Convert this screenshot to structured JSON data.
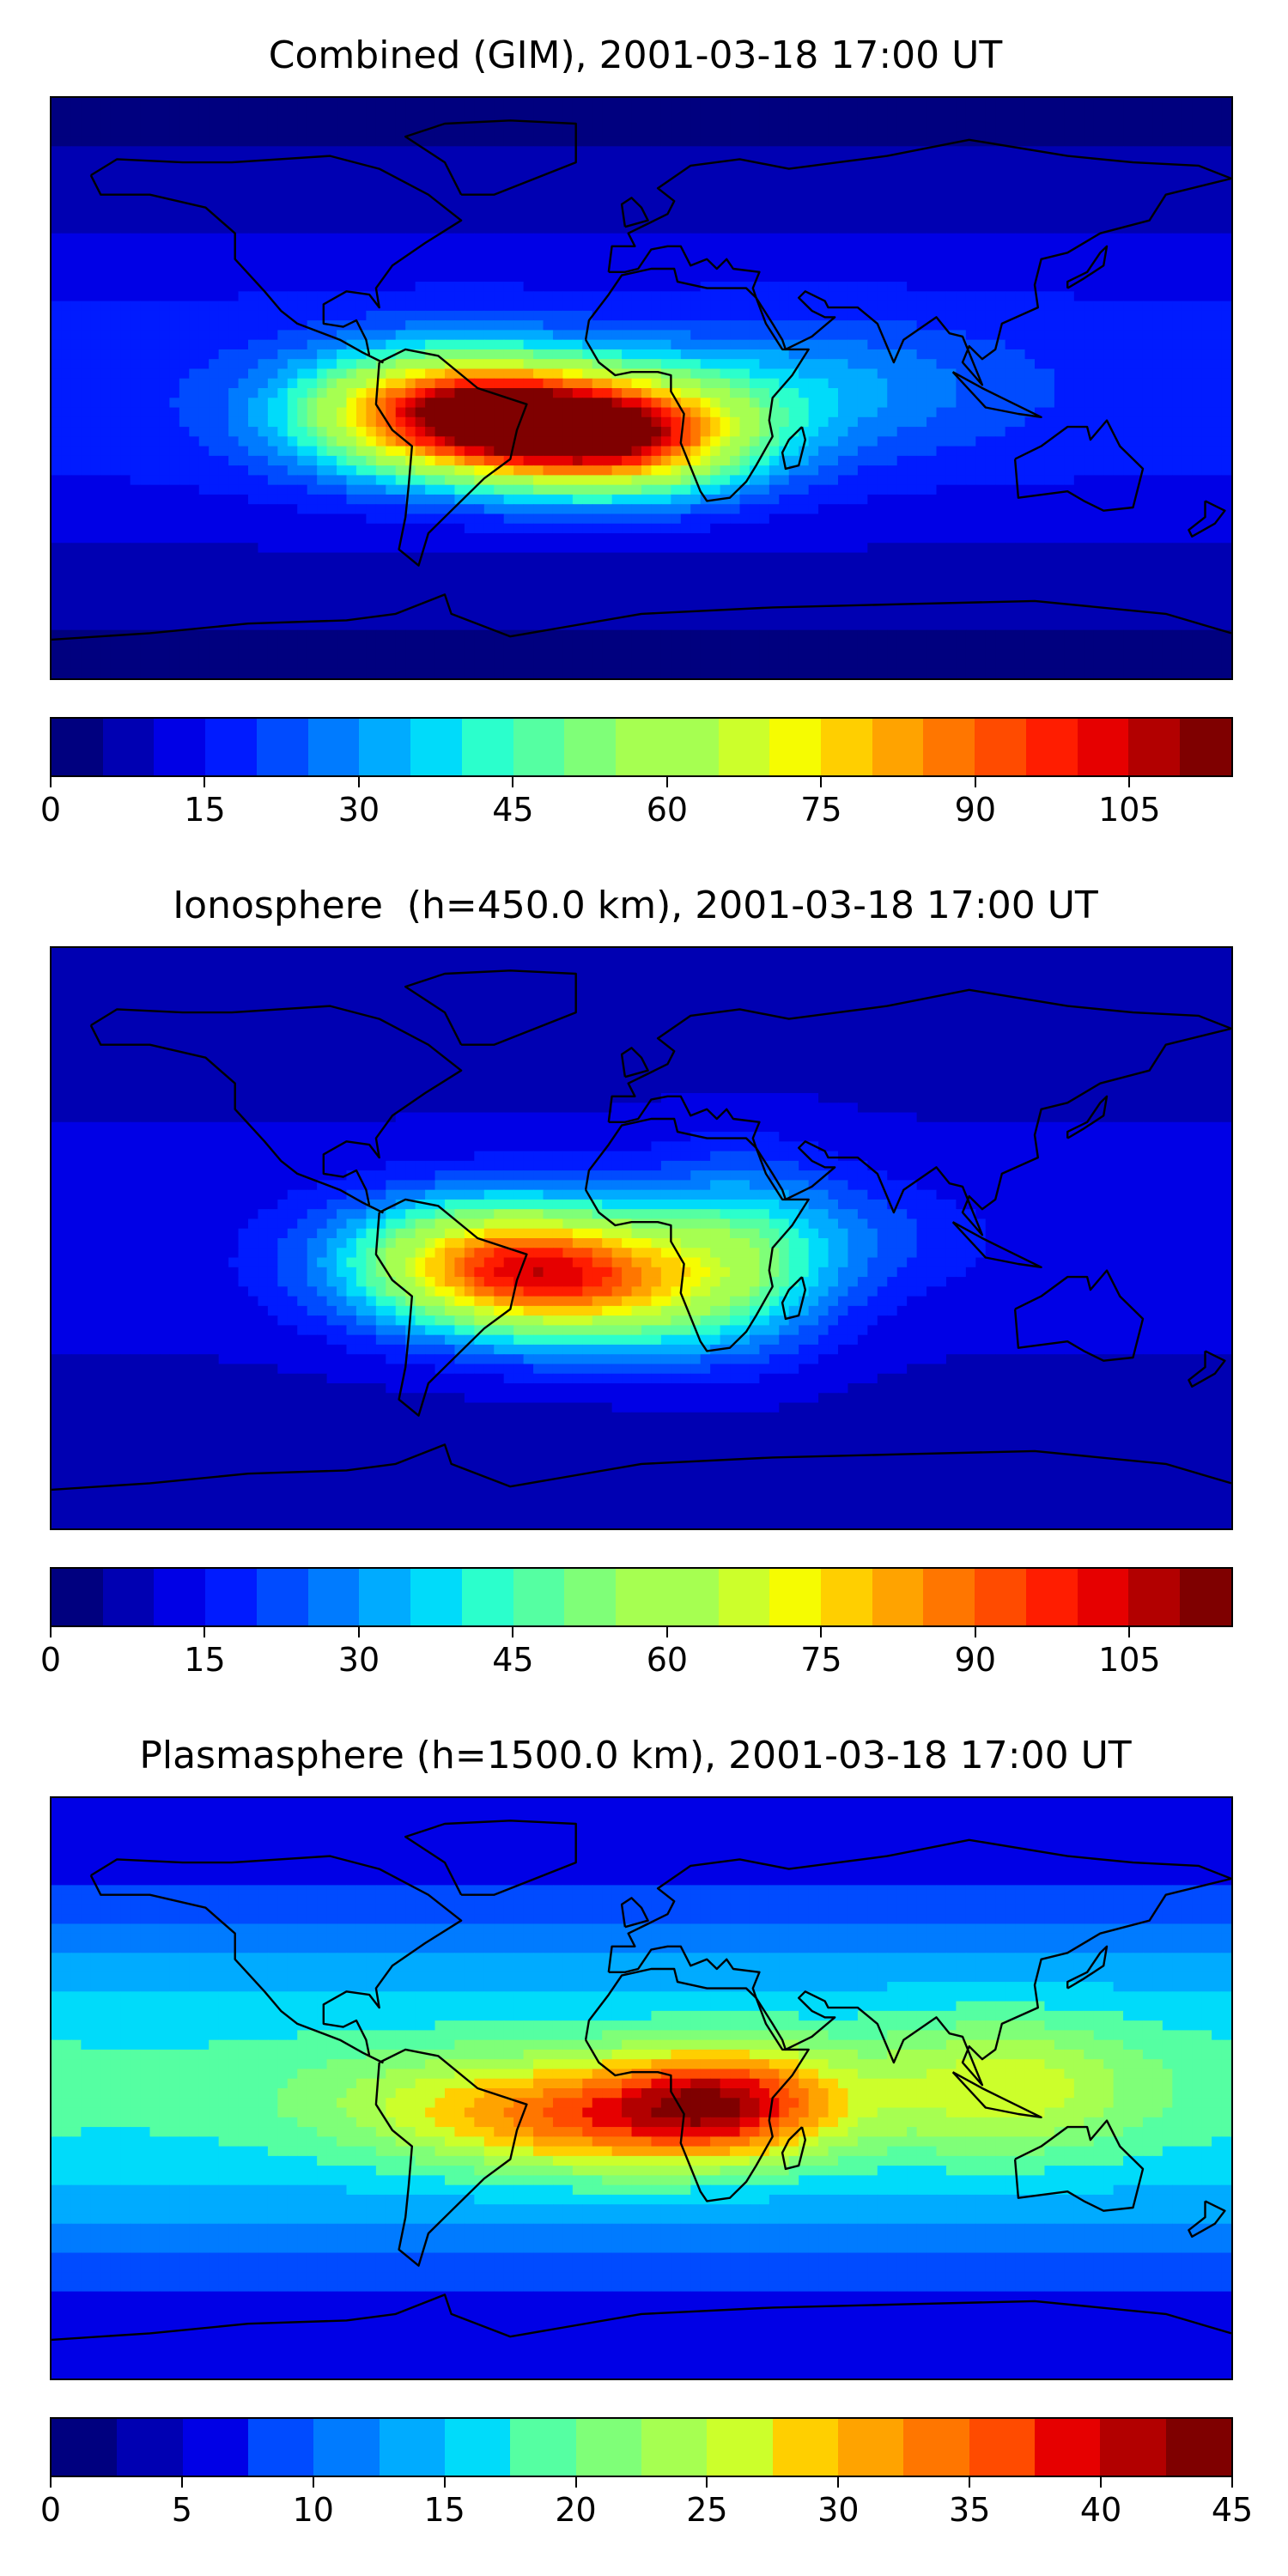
{
  "colormap": [
    "#00007f",
    "#0000b2",
    "#0000e6",
    "#001bff",
    "#004bff",
    "#007bff",
    "#00abff",
    "#00dbfa",
    "#2bffcc",
    "#55ffa2",
    "#7fff78",
    "#a6ff51",
    "#ccff2b",
    "#f6fc01",
    "#ffcf00",
    "#ffa300",
    "#ff7600",
    "#ff4b00",
    "#ff1d00",
    "#e60000",
    "#b20000",
    "#7f0000"
  ],
  "chart_data": [
    {
      "type": "heatmap",
      "title": "Combined (GIM), 2001-03-18 17:00 UT",
      "colorbar": {
        "min": 0,
        "max": 115,
        "levels": 23,
        "ticks": [
          0,
          15,
          30,
          45,
          60,
          75,
          90,
          105
        ],
        "tick_labels": [
          "0",
          "15",
          "30",
          "45",
          "60",
          "75",
          "90",
          "105"
        ]
      },
      "features": [
        {
          "lon": -55,
          "lat": -8,
          "value": 110,
          "slon": 32,
          "slat": 13
        },
        {
          "lon": -10,
          "lat": -15,
          "value": 95,
          "slon": 28,
          "slat": 12
        },
        {
          "lon": 20,
          "lat": -10,
          "value": 30,
          "slon": 25,
          "slat": 15
        },
        {
          "lon": 60,
          "lat": 0,
          "value": 30,
          "slon": 35,
          "slat": 14
        }
      ],
      "base": {
        "equator": 18,
        "pole": 4
      }
    },
    {
      "type": "heatmap",
      "title": "Ionosphere  (h=450.0 km), 2001-03-18 17:00 UT",
      "colorbar": {
        "min": 0,
        "max": 115,
        "levels": 23,
        "ticks": [
          0,
          15,
          30,
          45,
          60,
          75,
          90,
          105
        ],
        "tick_labels": [
          "0",
          "15",
          "30",
          "45",
          "60",
          "75",
          "90",
          "105"
        ]
      },
      "features": [
        {
          "lon": -45,
          "lat": -8,
          "value": 80,
          "slon": 32,
          "slat": 14
        },
        {
          "lon": -10,
          "lat": -15,
          "value": 55,
          "slon": 30,
          "slat": 14
        },
        {
          "lon": 30,
          "lat": -5,
          "value": 40,
          "slon": 22,
          "slat": 20
        },
        {
          "lon": 70,
          "lat": 0,
          "value": 20,
          "slon": 25,
          "slat": 12
        }
      ],
      "base": {
        "equator": 12,
        "pole": 6
      }
    },
    {
      "type": "heatmap",
      "title": "Plasmasphere (h=1500.0 km), 2001-03-18 17:00 UT",
      "colorbar": {
        "min": 0,
        "max": 45,
        "levels": 18,
        "ticks": [
          0,
          5,
          10,
          15,
          20,
          25,
          30,
          35,
          40,
          45
        ],
        "tick_labels": [
          "0",
          "5",
          "10",
          "15",
          "20",
          "25",
          "30",
          "35",
          "40",
          "45"
        ]
      },
      "features": [
        {
          "lon": 25,
          "lat": -5,
          "value": 40,
          "slon": 25,
          "slat": 12
        },
        {
          "lon": -20,
          "lat": -10,
          "value": 30,
          "slon": 30,
          "slat": 12
        },
        {
          "lon": 110,
          "lat": 0,
          "value": 27,
          "slon": 30,
          "slat": 15
        },
        {
          "lon": -60,
          "lat": -5,
          "value": 24,
          "slon": 35,
          "slat": 12
        }
      ],
      "base": {
        "equator": 18,
        "pole": 5
      }
    }
  ],
  "map_extent": {
    "lon_min": -180,
    "lon_max": 180,
    "lat_min": -90,
    "lat_max": 90
  }
}
